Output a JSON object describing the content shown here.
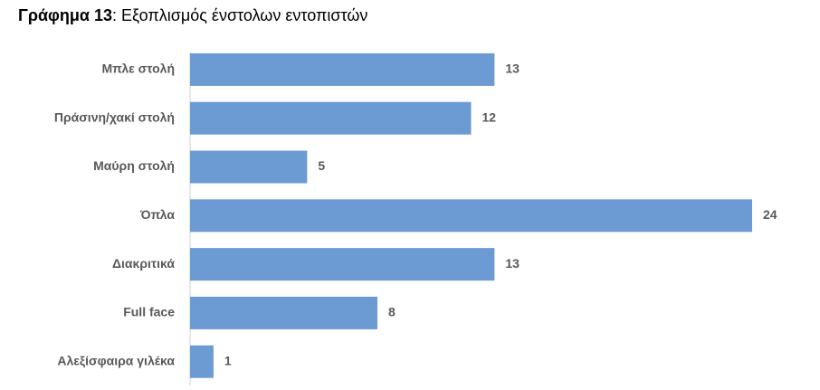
{
  "chart_data": {
    "type": "bar",
    "orientation": "horizontal",
    "title_prefix": "Γράφημα 13",
    "title": ": Εξοπλισμός ένστολων εντοπιστών",
    "categories": [
      "Μπλε στολή",
      "Πράσινη/χακί στολή",
      "Μαύρη στολή",
      "Όπλα",
      "Διακριτικά",
      "Full face",
      "Αλεξίσφαιρα γιλέκα"
    ],
    "values": [
      13,
      12,
      5,
      24,
      13,
      8,
      1
    ],
    "color": "#6b9bd2"
  }
}
